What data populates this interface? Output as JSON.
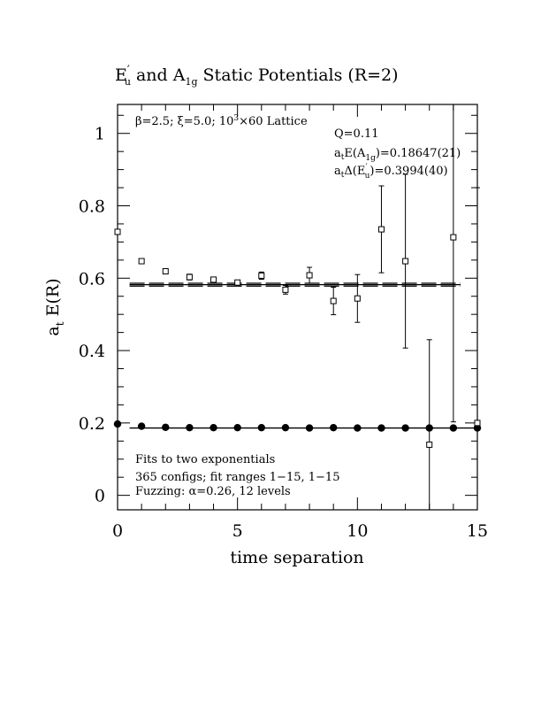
{
  "chart_data": {
    "type": "scatter",
    "title": {
      "text_a": "E",
      "sup_a": "′",
      "sub_a": "u",
      "text_mid": "  and  A",
      "sub_b": "1g",
      "text_end": "  Static Potentials (R=2)"
    },
    "xlabel": "time separation",
    "ylabel": {
      "a": "a",
      "sub": "t",
      "b": " E(R)"
    },
    "xlim": [
      0,
      15
    ],
    "ylim": [
      -0.04,
      1.08
    ],
    "xticks": [
      0,
      5,
      10,
      15
    ],
    "xtick_labels": [
      "0",
      "5",
      "10",
      "15"
    ],
    "yticks": [
      0,
      0.2,
      0.4,
      0.6,
      0.8,
      1
    ],
    "ytick_labels": [
      "0",
      "0.2",
      "0.4",
      "0.6",
      "0.8",
      "1"
    ],
    "annotations": {
      "top_left": {
        "pre": "β=2.5;  ξ=5.0;  10",
        "sup": "3",
        "post": "×60 Lattice"
      },
      "q": "Q=0.11",
      "ea1g": {
        "a": "a",
        "sub_t": "t",
        "b": "E(A",
        "sub": "1g",
        "c": ")=0.18647(21)"
      },
      "deu": {
        "a": "a",
        "sub_t": "t",
        "b": "Δ(E",
        "sup": "′",
        "sub": "u",
        "c": ")=0.3994(40)"
      },
      "fits": "Fits to two exponentials",
      "configs": "365 configs; fit ranges 1−15,  1−15",
      "fuzzing": "Fuzzing: α=0.26, 12 levels"
    },
    "series": [
      {
        "marker": "filled-circle",
        "points": [
          {
            "x": 0,
            "y": 0.197
          },
          {
            "x": 1,
            "y": 0.191
          },
          {
            "x": 2,
            "y": 0.188
          },
          {
            "x": 3,
            "y": 0.187
          },
          {
            "x": 4,
            "y": 0.187
          },
          {
            "x": 5,
            "y": 0.187
          },
          {
            "x": 6,
            "y": 0.187
          },
          {
            "x": 7,
            "y": 0.187
          },
          {
            "x": 8,
            "y": 0.186
          },
          {
            "x": 9,
            "y": 0.187
          },
          {
            "x": 10,
            "y": 0.186
          },
          {
            "x": 11,
            "y": 0.186
          },
          {
            "x": 12,
            "y": 0.186
          },
          {
            "x": 13,
            "y": 0.186
          },
          {
            "x": 14,
            "y": 0.186
          },
          {
            "x": 15,
            "y": 0.186
          }
        ]
      },
      {
        "marker": "open-square",
        "points": [
          {
            "x": 0,
            "y": 0.728,
            "err": 0.005
          },
          {
            "x": 1,
            "y": 0.647,
            "err": 0.004
          },
          {
            "x": 2,
            "y": 0.619,
            "err": 0.006
          },
          {
            "x": 3,
            "y": 0.603,
            "err": 0.008
          },
          {
            "x": 4,
            "y": 0.596,
            "err": 0.006
          },
          {
            "x": 5,
            "y": 0.588,
            "err": 0.006
          },
          {
            "x": 6,
            "y": 0.607,
            "err": 0.01
          },
          {
            "x": 7,
            "y": 0.568,
            "err": 0.012
          },
          {
            "x": 8,
            "y": 0.608,
            "err": 0.022
          },
          {
            "x": 9,
            "y": 0.537,
            "err": 0.038
          },
          {
            "x": 10,
            "y": 0.544,
            "err": 0.066
          },
          {
            "x": 11,
            "y": 0.735,
            "err": 0.12
          },
          {
            "x": 12,
            "y": 0.647,
            "err": 0.24
          },
          {
            "x": 13,
            "y": 0.14,
            "err": 0.29
          },
          {
            "x": 14,
            "y": 0.713,
            "err": 0.51
          },
          {
            "x": 15,
            "y": 0.2,
            "err": 0.65
          }
        ]
      }
    ],
    "fit_lines": [
      {
        "style": "solid",
        "y": 0.186,
        "x_start": 0.5,
        "x_end": 15
      },
      {
        "style": "dashed",
        "y": 0.578,
        "x_start": 0.5,
        "x_end": 14.3
      },
      {
        "style": "dashed",
        "y": 0.586,
        "x_start": 0.5,
        "x_end": 14.3
      },
      {
        "style": "solid",
        "y": 0.582,
        "x_start": 0.5,
        "x_end": 14.3
      }
    ]
  }
}
